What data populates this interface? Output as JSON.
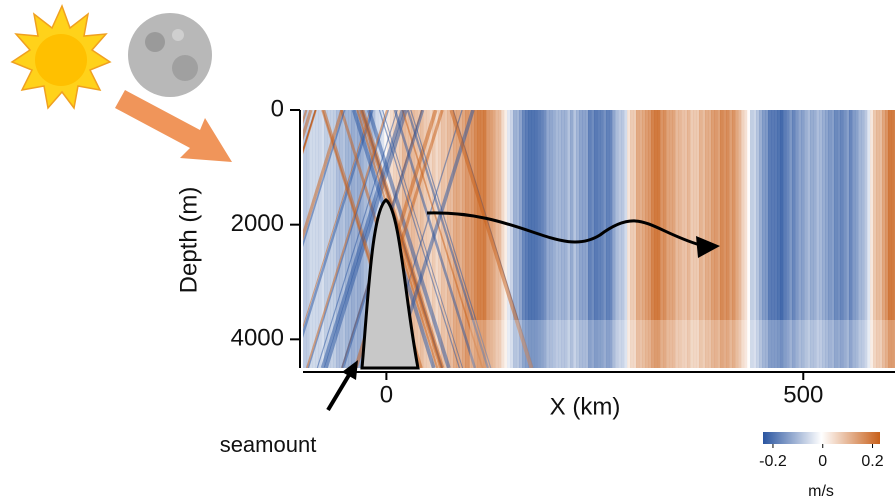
{
  "chart_data": {
    "type": "heatmap",
    "xlabel": "X (km)",
    "ylabel": "Depth (m)",
    "xlim": [
      -100,
      610
    ],
    "xticks": [
      0,
      500
    ],
    "ylim": [
      4500,
      0
    ],
    "yticks": [
      0,
      2000,
      4000
    ],
    "colorbar": {
      "lim": [
        -0.24,
        0.23
      ],
      "ticks": [
        -0.2,
        0,
        0.2
      ],
      "label": "m/s",
      "colors": [
        "#2a55a0",
        "#ffffff",
        "#c8601a"
      ]
    },
    "annotation": "seamount"
  }
}
